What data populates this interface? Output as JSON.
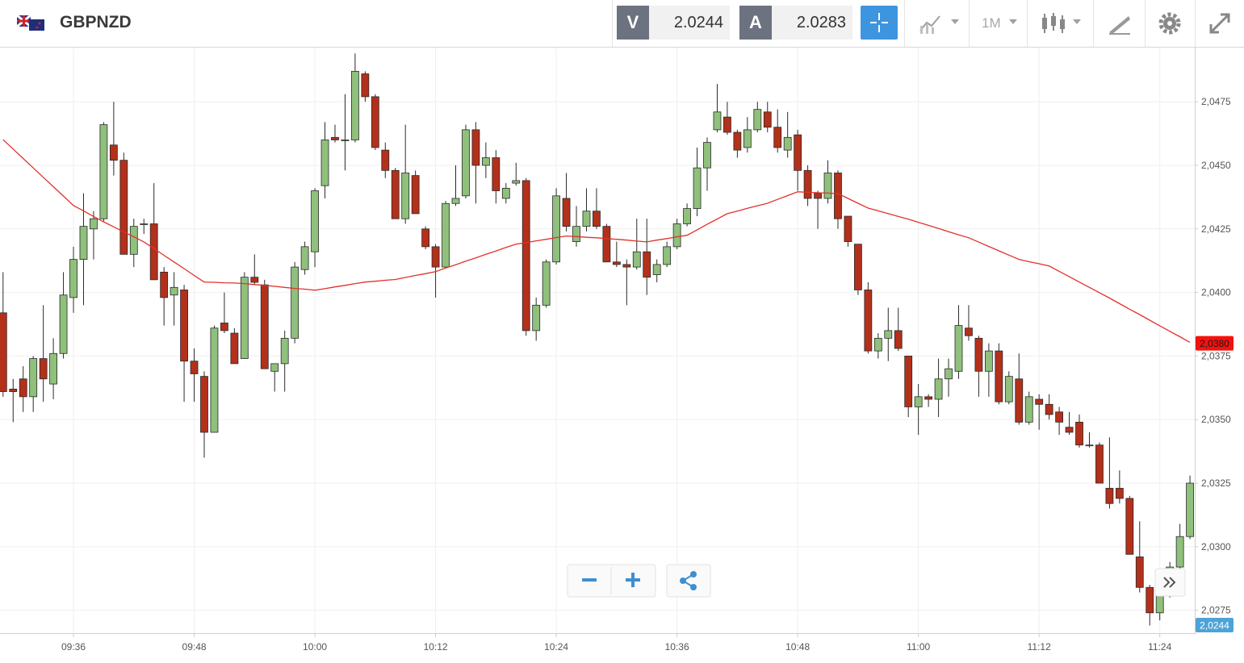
{
  "toolbar": {
    "symbol": "GBPNZD",
    "bid_label": "V",
    "bid": "2.0244",
    "ask_label": "A",
    "ask": "2.0283",
    "timeframe": "1M"
  },
  "chart_data": {
    "type": "candlestick",
    "categories": [
      null,
      null,
      null,
      null,
      null,
      null,
      null,
      "09:36",
      null,
      null,
      null,
      null,
      null,
      null,
      null,
      null,
      null,
      null,
      null,
      "09:48",
      null,
      null,
      null,
      null,
      null,
      null,
      null,
      null,
      null,
      null,
      null,
      "10:00",
      null,
      null,
      null,
      null,
      null,
      null,
      null,
      null,
      null,
      null,
      null,
      "10:12",
      null,
      null,
      null,
      null,
      null,
      null,
      null,
      null,
      null,
      null,
      null,
      "10:24",
      null,
      null,
      null,
      null,
      null,
      null,
      null,
      null,
      null,
      null,
      null,
      "10:36",
      null,
      null,
      null,
      null,
      null,
      null,
      null,
      null,
      null,
      null,
      null,
      "10:48",
      null,
      null,
      null,
      null,
      null,
      null,
      null,
      null,
      null,
      null,
      null,
      "11:00",
      null,
      null,
      null,
      null,
      null,
      null,
      null,
      null,
      null,
      null,
      null,
      "11:12",
      null,
      null,
      null,
      null,
      null,
      null,
      null,
      null,
      null,
      null,
      null,
      "11:24",
      null,
      null,
      null
    ],
    "open": [
      2.0392,
      2.0362,
      2.0366,
      2.0359,
      2.0374,
      2.0364,
      2.0376,
      2.0398,
      2.0413,
      2.0425,
      2.0429,
      2.0458,
      2.0452,
      2.0415,
      2.0427,
      2.0427,
      2.0408,
      2.0399,
      2.0401,
      2.0373,
      2.0367,
      2.0345,
      2.0388,
      2.0384,
      2.0374,
      2.0406,
      2.0403,
      2.0369,
      2.0372,
      2.0382,
      2.0409,
      2.0416,
      2.0442,
      2.0461,
      2.046,
      2.046,
      2.0486,
      2.0477,
      2.0456,
      2.0448,
      2.0429,
      2.0446,
      2.0425,
      2.0418,
      2.041,
      2.0435,
      2.0438,
      2.0464,
      2.045,
      2.0453,
      2.0437,
      2.0443,
      2.0444,
      2.0385,
      2.0395,
      2.0412,
      2.0437,
      2.042,
      2.0426,
      2.0432,
      2.0426,
      2.0412,
      2.0411,
      2.041,
      2.0416,
      2.0407,
      2.0411,
      2.0418,
      2.0427,
      2.0433,
      2.0449,
      2.0464,
      2.0469,
      2.0463,
      2.0457,
      2.0464,
      2.0471,
      2.0465,
      2.0456,
      2.0462,
      2.0448,
      2.0439,
      2.0437,
      2.0447,
      2.043,
      2.0419,
      2.0401,
      2.0377,
      2.0382,
      2.0385,
      2.0375,
      2.0355,
      2.0359,
      2.0358,
      2.0366,
      2.0369,
      2.0386,
      2.0382,
      2.0369,
      2.0377,
      2.0357,
      2.0366,
      2.0349,
      2.0358,
      2.0356,
      2.0353,
      2.0347,
      2.0349,
      2.034,
      2.034,
      2.0323,
      2.0323,
      2.0319,
      2.0296,
      2.0284,
      2.0274,
      2.0281,
      2.0292,
      2.0304
    ],
    "high": [
      2.0408,
      2.0366,
      2.0371,
      2.0375,
      2.0395,
      2.0382,
      2.0408,
      2.0418,
      2.0439,
      2.0432,
      2.0467,
      2.0475,
      2.0455,
      2.0429,
      2.0429,
      2.0443,
      2.041,
      2.0408,
      2.0403,
      2.0378,
      2.0369,
      2.0387,
      2.04,
      2.0386,
      2.0408,
      2.0415,
      2.0405,
      2.0372,
      2.0385,
      2.0412,
      2.042,
      2.0441,
      2.0467,
      2.0466,
      2.0478,
      2.0494,
      2.0487,
      2.0478,
      2.0459,
      2.0449,
      2.0466,
      2.0448,
      2.0426,
      2.0419,
      2.0436,
      2.045,
      2.0466,
      2.0467,
      2.0459,
      2.0456,
      2.0443,
      2.0451,
      2.0445,
      2.0398,
      2.0413,
      2.0441,
      2.0447,
      2.0434,
      2.0441,
      2.0441,
      2.0427,
      2.042,
      2.0413,
      2.0429,
      2.0429,
      2.0413,
      2.042,
      2.0429,
      2.0435,
      2.0457,
      2.0461,
      2.0482,
      2.0475,
      2.0464,
      2.0469,
      2.0475,
      2.0475,
      2.0472,
      2.0471,
      2.0464,
      2.045,
      2.044,
      2.0452,
      2.0448,
      2.043,
      2.0419,
      2.0404,
      2.0384,
      2.0394,
      2.0394,
      2.0375,
      2.0364,
      2.036,
      2.0374,
      2.0374,
      2.0395,
      2.0395,
      2.0383,
      2.038,
      2.038,
      2.0369,
      2.0376,
      2.0361,
      2.036,
      2.036,
      2.0355,
      2.0353,
      2.0352,
      2.0345,
      2.0341,
      2.0343,
      2.033,
      2.032,
      2.031,
      2.0285,
      2.0283,
      2.0294,
      2.0309,
      2.0328
    ],
    "low": [
      2.0359,
      2.0349,
      2.0353,
      2.0353,
      2.0357,
      2.0358,
      2.0374,
      2.0392,
      2.0395,
      2.0413,
      2.0428,
      2.0446,
      2.0415,
      2.041,
      2.0423,
      2.0405,
      2.0387,
      2.0387,
      2.0357,
      2.0357,
      2.0335,
      2.0345,
      2.0384,
      2.0372,
      2.0374,
      2.0403,
      2.037,
      2.0361,
      2.0361,
      2.038,
      2.0407,
      2.041,
      2.0437,
      2.0459,
      2.0448,
      2.0459,
      2.0475,
      2.0456,
      2.0445,
      2.0429,
      2.0427,
      2.0431,
      2.0417,
      2.0398,
      2.041,
      2.0434,
      2.0437,
      2.0435,
      2.0445,
      2.0435,
      2.0435,
      2.0442,
      2.0383,
      2.0381,
      2.0394,
      2.0411,
      2.0424,
      2.0418,
      2.0424,
      2.0425,
      2.0412,
      2.041,
      2.0395,
      2.0409,
      2.0399,
      2.0404,
      2.041,
      2.0417,
      2.0426,
      2.043,
      2.044,
      2.0463,
      2.0462,
      2.0453,
      2.0455,
      2.0463,
      2.0463,
      2.0455,
      2.0453,
      2.044,
      2.0434,
      2.0425,
      2.0435,
      2.0425,
      2.0418,
      2.0399,
      2.0376,
      2.0374,
      2.0373,
      2.0377,
      2.0351,
      2.0344,
      2.0355,
      2.0351,
      2.0359,
      2.0366,
      2.0381,
      2.0359,
      2.0359,
      2.0356,
      2.0356,
      2.0348,
      2.0348,
      2.0346,
      2.035,
      2.0344,
      2.0344,
      2.0339,
      2.0339,
      2.0325,
      2.0315,
      2.0317,
      2.0297,
      2.0282,
      2.0269,
      2.0271,
      2.028,
      2.0291,
      2.0303
    ],
    "close": [
      2.0361,
      2.0361,
      2.0359,
      2.0374,
      2.0366,
      2.0376,
      2.0399,
      2.0413,
      2.0426,
      2.0429,
      2.0466,
      2.0452,
      2.0415,
      2.0426,
      2.0427,
      2.0405,
      2.0398,
      2.0402,
      2.0373,
      2.0368,
      2.0345,
      2.0386,
      2.0385,
      2.0372,
      2.0406,
      2.0404,
      2.037,
      2.0372,
      2.0382,
      2.041,
      2.0418,
      2.044,
      2.046,
      2.046,
      2.046,
      2.0487,
      2.0477,
      2.0457,
      2.0448,
      2.0429,
      2.0447,
      2.0431,
      2.0418,
      2.041,
      2.0435,
      2.0437,
      2.0464,
      2.045,
      2.0453,
      2.044,
      2.0441,
      2.0444,
      2.0385,
      2.0395,
      2.0412,
      2.0438,
      2.0426,
      2.0426,
      2.0432,
      2.0426,
      2.0412,
      2.0411,
      2.041,
      2.0416,
      2.0406,
      2.0411,
      2.0418,
      2.0427,
      2.0433,
      2.0449,
      2.0459,
      2.0471,
      2.0463,
      2.0456,
      2.0464,
      2.0472,
      2.0465,
      2.0457,
      2.0461,
      2.0448,
      2.0437,
      2.0437,
      2.0447,
      2.0429,
      2.042,
      2.0401,
      2.0377,
      2.0382,
      2.0385,
      2.0378,
      2.0355,
      2.0359,
      2.0358,
      2.0366,
      2.037,
      2.0387,
      2.0383,
      2.0369,
      2.0377,
      2.0357,
      2.0367,
      2.0349,
      2.0359,
      2.0356,
      2.0352,
      2.0349,
      2.0345,
      2.034,
      2.034,
      2.0325,
      2.0317,
      2.0319,
      2.0297,
      2.0284,
      2.0274,
      2.0281,
      2.0292,
      2.0304,
      2.0325
    ],
    "up_color": "#8fc07c",
    "down_color": "#b3301b",
    "ma": {
      "color": "#e2312b",
      "values": [
        2.04601,
        2.04564,
        2.04527,
        2.0449,
        2.04453,
        2.04416,
        2.04379,
        2.04342,
        2.04321,
        2.04299,
        2.04278,
        2.04258,
        2.04238,
        2.04219,
        2.04199,
        2.04173,
        2.04146,
        2.0412,
        2.04094,
        2.04067,
        2.04041,
        2.0404,
        2.04038,
        2.04037,
        2.04035,
        2.04031,
        2.04028,
        2.04024,
        2.0402,
        2.04016,
        2.04013,
        2.04009,
        2.04015,
        2.04022,
        2.04028,
        2.04035,
        2.04041,
        2.04044,
        2.04048,
        2.04051,
        2.04059,
        2.04067,
        2.04074,
        2.04082,
        2.04096,
        2.04109,
        2.04123,
        2.04136,
        2.0415,
        2.04163,
        2.04177,
        2.0419,
        2.04196,
        2.04203,
        2.04209,
        2.04216,
        2.04222,
        2.0422,
        2.04217,
        2.04215,
        2.04212,
        2.04209,
        2.04206,
        2.04202,
        2.04199,
        2.04206,
        2.04212,
        2.04219,
        2.04225,
        2.04246,
        2.04268,
        2.04289,
        2.0431,
        2.0432,
        2.04331,
        2.04341,
        2.04351,
        2.04366,
        2.04381,
        2.04396,
        2.04394,
        2.04392,
        2.04391,
        2.04389,
        2.0437,
        2.04351,
        2.04332,
        2.04321,
        2.0431,
        2.04299,
        2.04288,
        2.04276,
        2.04264,
        2.04252,
        2.04239,
        2.04227,
        2.04215,
        2.04198,
        2.04181,
        2.04164,
        2.04147,
        2.0413,
        2.04121,
        2.04113,
        2.04104,
        2.04083,
        2.04062,
        2.04041,
        2.0402,
        2.03999,
        2.03978,
        2.03956,
        2.03934,
        2.03913,
        2.03891,
        2.03869,
        2.03847,
        2.03826,
        2.03804
      ]
    },
    "ma_label": {
      "value": 2.038,
      "label": "2,0380"
    },
    "price_label": {
      "value": 2.0244,
      "label": "2,0244"
    },
    "ylim": [
      2.0266,
      2.0496
    ],
    "yticks": [
      {
        "value": 2.0275,
        "label": "2,0275"
      },
      {
        "value": 2.03,
        "label": "2,0300"
      },
      {
        "value": 2.0325,
        "label": "2,0325"
      },
      {
        "value": 2.035,
        "label": "2,0350"
      },
      {
        "value": 2.0375,
        "label": "2,0375"
      },
      {
        "value": 2.04,
        "label": "2,0400"
      },
      {
        "value": 2.0425,
        "label": "2,0425"
      },
      {
        "value": 2.045,
        "label": "2,0450"
      },
      {
        "value": 2.0475,
        "label": "2,0475"
      }
    ],
    "grid": true
  }
}
